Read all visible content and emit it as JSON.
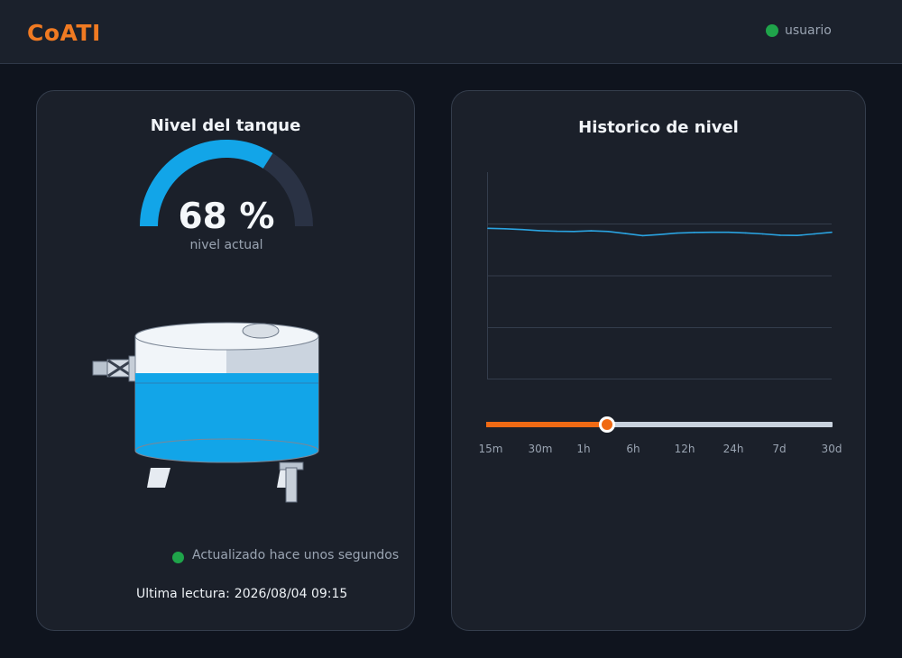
{
  "header": {
    "brand": "CoATI",
    "user_label": "usuario",
    "user_status_color": "#1fa44a"
  },
  "tank_card": {
    "title": "Nivel del tanque",
    "level_percent": 68,
    "level_text": "68 %",
    "level_caption": "nivel actual",
    "updated_text": "Actualizado hace unos segundos",
    "last_reading_label": "Ultima lectura:",
    "last_reading_value": "2026/08/04 09:15",
    "water_color": "#12a5e8",
    "gauge_track_color": "#2a3244"
  },
  "history_card": {
    "title": "Historico de nivel",
    "range_options": [
      "15m",
      "30m",
      "1h",
      "6h",
      "12h",
      "24h",
      "7d",
      "30d"
    ],
    "range_selected_fraction": 0.35,
    "accent_color": "#f06a14"
  },
  "chart_data": {
    "type": "line",
    "ylim": [
      0,
      100
    ],
    "grid": true,
    "series": [
      {
        "color": "#2aa3e0",
        "x": [
          0,
          1,
          2,
          3,
          4,
          5,
          6,
          7,
          8,
          9,
          10,
          11,
          12,
          13,
          14,
          15,
          16,
          17,
          18,
          19,
          20
        ],
        "values": [
          72.9,
          72.7,
          72.3,
          71.8,
          71.5,
          71.4,
          71.7,
          71.4,
          70.4,
          69.4,
          69.9,
          70.6,
          70.9,
          71.0,
          71.0,
          70.7,
          70.2,
          69.6,
          69.5,
          70.2,
          71.0
        ]
      }
    ]
  }
}
